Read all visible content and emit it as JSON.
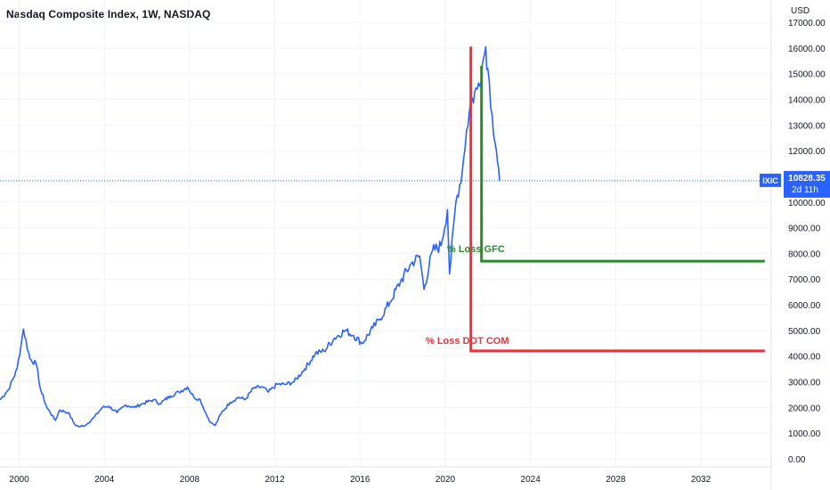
{
  "header": {
    "title": "Nasdaq Composite Index, 1W, NASDAQ"
  },
  "price_axis": {
    "currency": "USD",
    "ticks": [
      "17000.00",
      "16000.00",
      "15000.00",
      "14000.00",
      "13000.00",
      "12000.00",
      "10000.00",
      "9000.00",
      "8000.00",
      "7000.00",
      "6000.00",
      "5000.00",
      "4000.00",
      "3000.00",
      "2000.00",
      "1000.00",
      "0.00"
    ]
  },
  "time_axis": {
    "ticks": [
      "2000",
      "2004",
      "2008",
      "2012",
      "2016",
      "2020",
      "2024",
      "2028",
      "2032"
    ]
  },
  "last_price": {
    "symbol": "IXIC",
    "price": "10828.35",
    "countdown": "2d 11h",
    "value": 10828.35
  },
  "colors": {
    "series": "#2962ff",
    "red": "#e8323c",
    "green": "#2a8a2a",
    "price_tag": "#2962ff",
    "grid": "#f0f3fa",
    "axis_text": "#131722"
  },
  "annotations": {
    "green_label": "% Loss GFC",
    "red_label": "% Loss DOT COM"
  },
  "chart_data": {
    "type": "line",
    "title": "Nasdaq Composite Index, 1W, NASDAQ",
    "xlabel": "",
    "ylabel": "USD",
    "ylim": [
      0,
      17300
    ],
    "xlim": [
      1999.1,
      2035.3
    ],
    "grid": true,
    "series": [
      {
        "name": "IXIC",
        "x": [
          1999.1,
          1999.5,
          1999.9,
          2000.1,
          2000.2,
          2000.5,
          2000.8,
          2001.0,
          2001.3,
          2001.7,
          2001.9,
          2002.3,
          2002.6,
          2002.8,
          2003.1,
          2003.5,
          2003.9,
          2004.2,
          2004.6,
          2005.0,
          2005.4,
          2005.8,
          2006.3,
          2006.6,
          2007.1,
          2007.5,
          2007.9,
          2008.2,
          2008.5,
          2008.8,
          2009.0,
          2009.2,
          2009.5,
          2009.9,
          2010.3,
          2010.6,
          2011.0,
          2011.4,
          2011.7,
          2012.1,
          2012.5,
          2012.9,
          2013.4,
          2013.9,
          2014.3,
          2014.8,
          2015.3,
          2015.7,
          2016.1,
          2016.6,
          2016.9,
          2017.4,
          2017.9,
          2018.4,
          2018.8,
          2019.0,
          2019.4,
          2019.8,
          2020.1,
          2020.2,
          2020.5,
          2020.8,
          2021.0,
          2021.2,
          2021.5,
          2021.8,
          2021.9,
          2022.0,
          2022.2,
          2022.4,
          2022.55
        ],
        "values": [
          2300,
          2700,
          3500,
          4500,
          5050,
          3900,
          3700,
          2700,
          2000,
          1500,
          1900,
          1800,
          1350,
          1250,
          1300,
          1600,
          2000,
          2050,
          1800,
          2100,
          2000,
          2150,
          2300,
          2150,
          2450,
          2600,
          2800,
          2400,
          2300,
          1700,
          1400,
          1300,
          1800,
          2200,
          2400,
          2300,
          2750,
          2800,
          2600,
          2900,
          2900,
          3000,
          3500,
          4100,
          4200,
          4700,
          5000,
          4800,
          4500,
          5100,
          5400,
          6100,
          6900,
          7600,
          7900,
          6600,
          8100,
          8300,
          9700,
          7200,
          10000,
          11200,
          12800,
          13900,
          14400,
          15600,
          16050,
          15200,
          13400,
          12000,
          10828
        ]
      }
    ],
    "annotations": [
      {
        "label": "% Loss GFC",
        "x_start": 2021.7,
        "x_end": 2035.0,
        "y": 7700,
        "vertical_from": 15300
      },
      {
        "label": "% Loss DOT COM",
        "x_start": 2021.2,
        "x_end": 2035.0,
        "y": 4200,
        "vertical_from": 16050
      }
    ]
  }
}
